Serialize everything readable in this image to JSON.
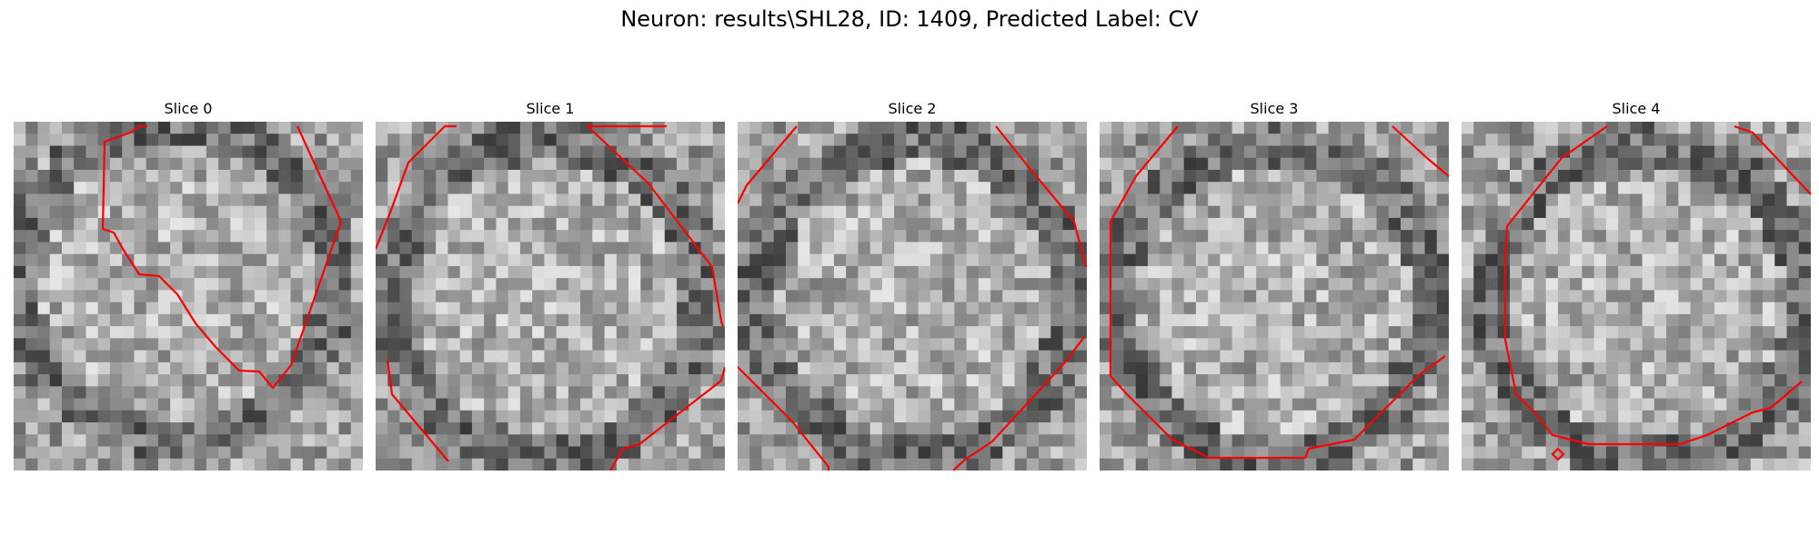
{
  "figure": {
    "title": "Neuron: results\\SHL28, ID: 1409, Predicted Label: CV"
  },
  "panels": [
    {
      "title": "Slice 0"
    },
    {
      "title": "Slice 1"
    },
    {
      "title": "Slice 2"
    },
    {
      "title": "Slice 3"
    },
    {
      "title": "Slice 4"
    }
  ],
  "colors": {
    "contour": "#ff0000",
    "image_colormap": "gray"
  }
}
